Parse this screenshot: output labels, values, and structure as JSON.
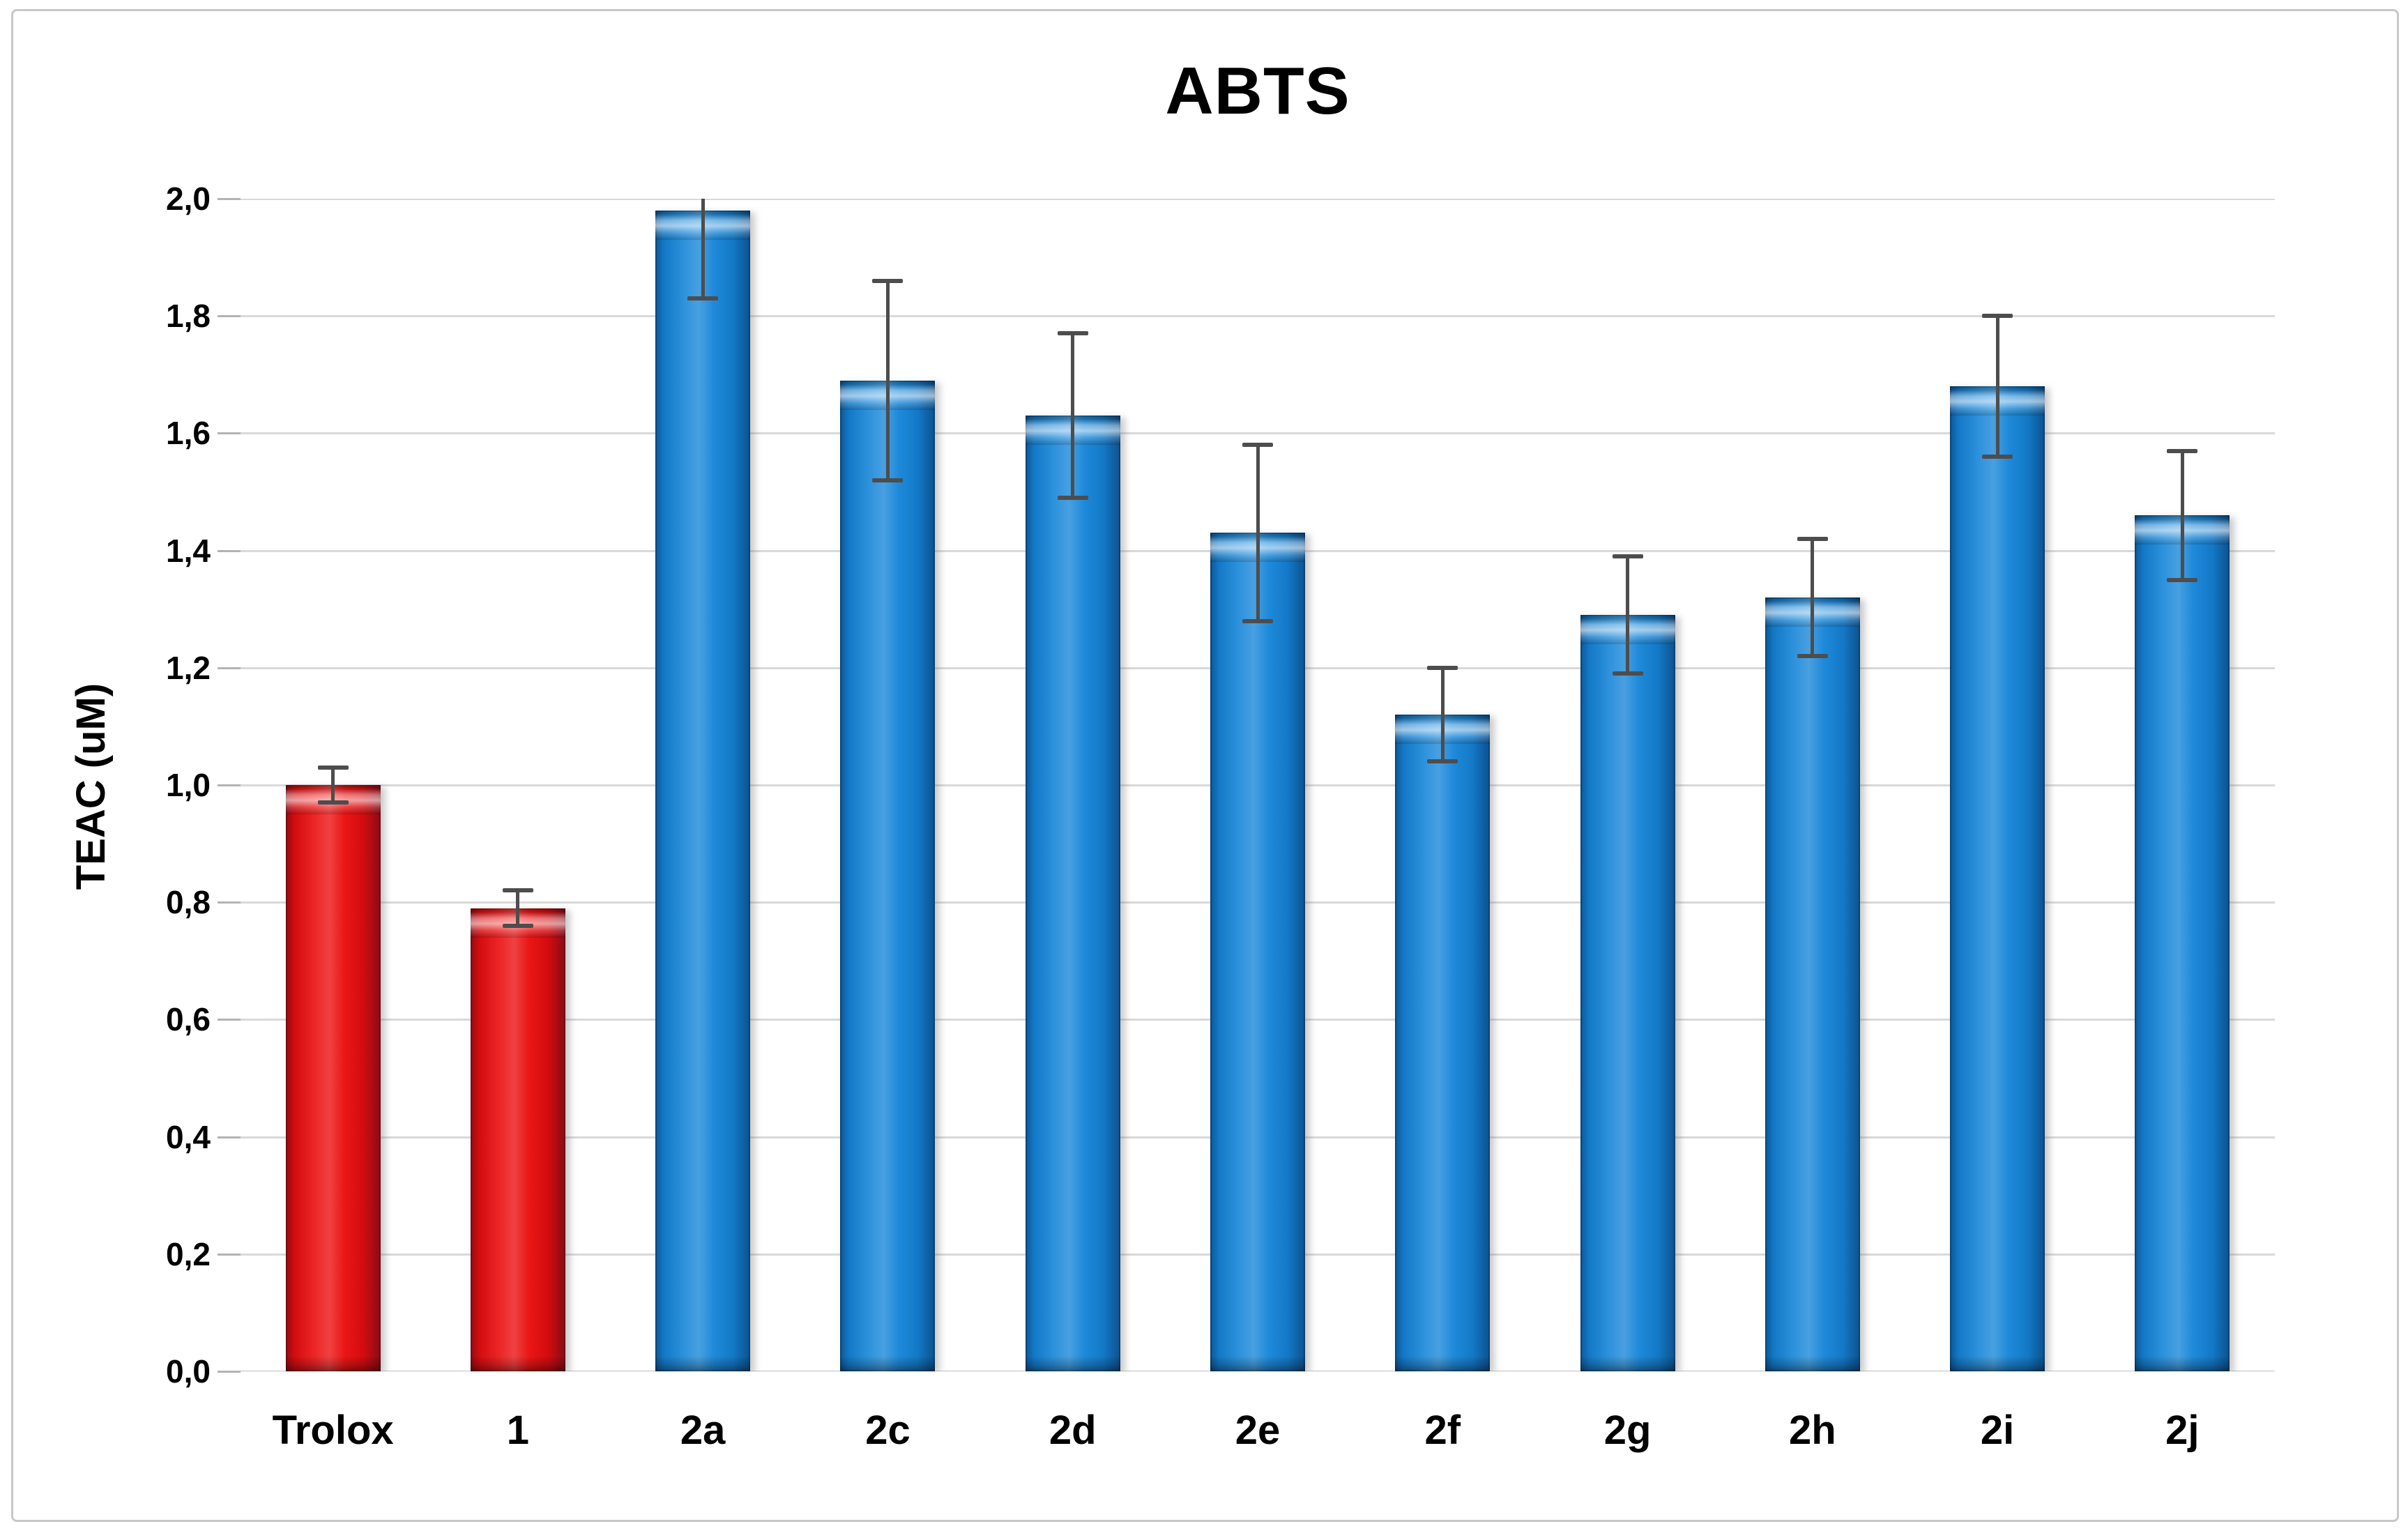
{
  "figure": {
    "title": "ABTS",
    "y_axis_title": "TEAC (uM)"
  },
  "chart_data": {
    "type": "bar",
    "title": "ABTS",
    "xlabel": "",
    "ylabel": "TEAC (uM)",
    "categories": [
      "Trolox",
      "1",
      "2a",
      "2c",
      "2d",
      "2e",
      "2f",
      "2g",
      "2h",
      "2i",
      "2j"
    ],
    "values": [
      1.0,
      0.79,
      1.98,
      1.69,
      1.63,
      1.43,
      1.12,
      1.29,
      1.32,
      1.68,
      1.46
    ],
    "errors": [
      0.03,
      0.03,
      0.15,
      0.17,
      0.14,
      0.15,
      0.08,
      0.1,
      0.1,
      0.12,
      0.11
    ],
    "bar_colors": [
      "#ea0c0c",
      "#ea0c0c",
      "#1585d8",
      "#1585d8",
      "#1585d8",
      "#1585d8",
      "#1585d8",
      "#1585d8",
      "#1585d8",
      "#1585d8",
      "#1585d8"
    ],
    "ylim": [
      0.0,
      2.0
    ],
    "ytick_step": 0.2,
    "ytick_labels": [
      "0,0",
      "0,2",
      "0,4",
      "0,6",
      "0,8",
      "1,0",
      "1,2",
      "1,4",
      "1,6",
      "1,8",
      "2,0"
    ],
    "decimal_separator": ",",
    "grid": true,
    "legend": "none",
    "error_bar_style": "both-ends-with-caps"
  },
  "colors": {
    "bar_blue": "#1585d8",
    "bar_red": "#ea0c0c",
    "error_bar": "#4d4d4d",
    "gridline": "#d9d9d9",
    "axis_baseline": "#bfbfbf",
    "figure_border": "#c7c7c7",
    "text": "#000000",
    "background": "#ffffff"
  }
}
